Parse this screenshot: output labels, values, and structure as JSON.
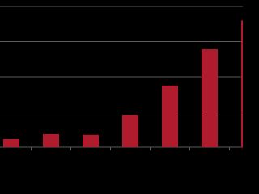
{
  "chart_data": {
    "type": "bar",
    "categories": [
      null,
      null,
      null,
      null,
      null,
      null,
      null
    ],
    "values": [
      0.23,
      0.37,
      0.35,
      0.92,
      1.75,
      2.78,
      3.6
    ],
    "color": "#b01c2e",
    "ylim": [
      0,
      4
    ],
    "yticks": [
      0,
      1,
      2,
      3,
      4
    ],
    "grid": true
  }
}
